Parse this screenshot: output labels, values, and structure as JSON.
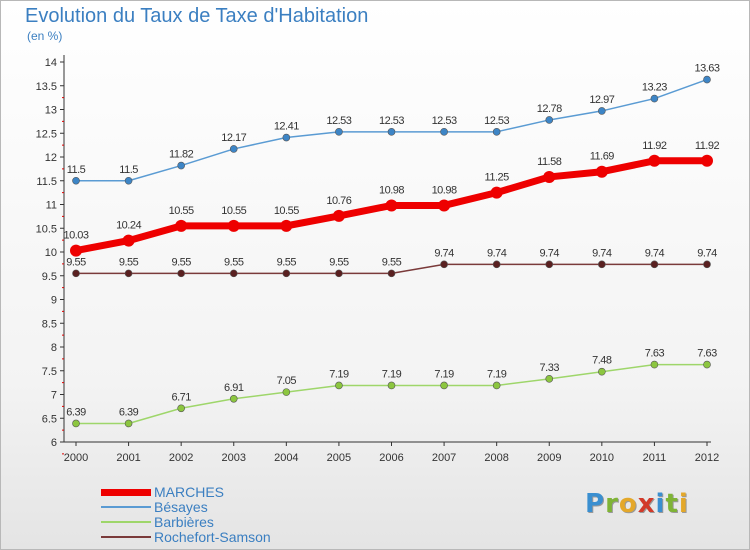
{
  "title": "Evolution du Taux de Taxe d'Habitation",
  "subtitle": "(en %)",
  "logo": {
    "text": "Proxiti",
    "letters": [
      {
        "ch": "P",
        "color": "#3a8fd0"
      },
      {
        "ch": "r",
        "color": "#7fb435"
      },
      {
        "ch": "o",
        "color": "#e4a82a"
      },
      {
        "ch": "x",
        "color": "#d23a2a"
      },
      {
        "ch": "i",
        "color": "#3a8fd0"
      },
      {
        "ch": "t",
        "color": "#7fb435"
      },
      {
        "ch": "i",
        "color": "#e4a82a"
      }
    ]
  },
  "chart_data": {
    "type": "line",
    "x": [
      "2000",
      "2001",
      "2002",
      "2003",
      "2004",
      "2005",
      "2006",
      "2007",
      "2008",
      "2009",
      "2010",
      "2011",
      "2012"
    ],
    "ylim": [
      6,
      14
    ],
    "yticks": [
      "6",
      "6.5",
      "7",
      "7.5",
      "8",
      "8.5",
      "9",
      "9.5",
      "10",
      "10.5",
      "11",
      "11.5",
      "12",
      "12.5",
      "13",
      "13.5",
      "14"
    ],
    "grid": false,
    "legend_position": "bottom-left",
    "series": [
      {
        "name": "Bésayes",
        "color": "#5a9bd3",
        "marker": "#3d85c6",
        "labels_above": true,
        "values": [
          11.5,
          11.5,
          11.82,
          12.17,
          12.41,
          12.53,
          12.53,
          12.53,
          12.53,
          12.78,
          12.97,
          13.23,
          13.63
        ],
        "labels": [
          "11.5",
          "11.5",
          "11.82",
          "12.17",
          "12.41",
          "12.53",
          "12.53",
          "12.53",
          "12.53",
          "12.78",
          "12.97",
          "13.23",
          "13.63"
        ]
      },
      {
        "name": "MARCHES",
        "color": "#ee0000",
        "marker": "#ee0000",
        "thick": true,
        "labels_above": true,
        "values": [
          10.03,
          10.24,
          10.55,
          10.55,
          10.55,
          10.76,
          10.98,
          10.98,
          11.25,
          11.58,
          11.69,
          11.92,
          11.92
        ],
        "labels": [
          "10.03",
          "10.24",
          "10.55",
          "10.55",
          "10.55",
          "10.76",
          "10.98",
          "10.98",
          "11.25",
          "11.58",
          "11.69",
          "11.92",
          "11.92"
        ]
      },
      {
        "name": "Rochefort-Samson",
        "color": "#7a3a3a",
        "marker": "#5a2020",
        "labels_above": true,
        "values": [
          9.55,
          9.55,
          9.55,
          9.55,
          9.55,
          9.55,
          9.55,
          9.74,
          9.74,
          9.74,
          9.74,
          9.74,
          9.74
        ],
        "labels": [
          "9.55",
          "9.55",
          "9.55",
          "9.55",
          "9.55",
          "9.55",
          "9.55",
          "9.74",
          "9.74",
          "9.74",
          "9.74",
          "9.74",
          "9.74"
        ]
      },
      {
        "name": "Barbières",
        "color": "#9ed66a",
        "marker": "#8cc63f",
        "labels_above": true,
        "values": [
          6.39,
          6.39,
          6.71,
          6.91,
          7.05,
          7.19,
          7.19,
          7.19,
          7.19,
          7.33,
          7.48,
          7.63,
          7.63
        ],
        "labels": [
          "6.39",
          "6.39",
          "6.71",
          "6.91",
          "7.05",
          "7.19",
          "7.19",
          "7.19",
          "7.19",
          "7.33",
          "7.48",
          "7.63",
          "7.63"
        ]
      }
    ]
  },
  "legend": [
    {
      "name": "MARCHES",
      "color": "#ee0000",
      "thick": true
    },
    {
      "name": "Bésayes",
      "color": "#5a9bd3"
    },
    {
      "name": "Barbières",
      "color": "#9ed66a"
    },
    {
      "name": "Rochefort-Samson",
      "color": "#7a3a3a"
    }
  ]
}
